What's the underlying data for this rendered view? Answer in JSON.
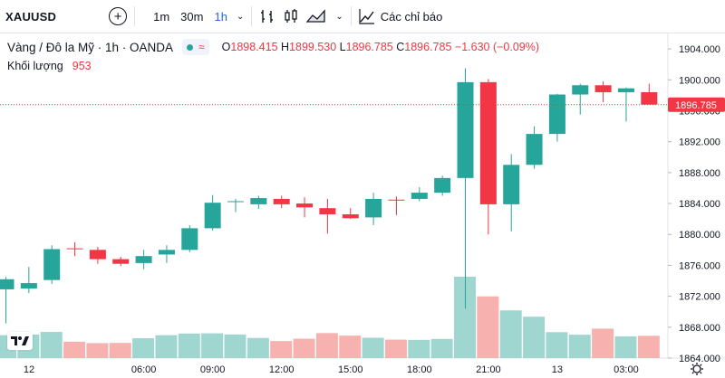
{
  "toolbar": {
    "symbol": "XAUUSD",
    "timeframes": [
      {
        "label": "1m",
        "active": false
      },
      {
        "label": "30m",
        "active": false
      },
      {
        "label": "1h",
        "active": true
      }
    ],
    "indicators_label": "Các chỉ báo"
  },
  "legend": {
    "title": "Vàng / Đô la Mỹ · 1h · OANDA",
    "o_label": "O",
    "o": "1898.415",
    "h_label": "H",
    "h": "1899.530",
    "l_label": "L",
    "l": "1896.785",
    "c_label": "C",
    "c": "1896.785",
    "change": "−1.630 (−0.09%)",
    "volume_label": "Khối lượng",
    "volume_value": "953"
  },
  "price_axis": {
    "ticks": [
      "1904.000",
      "1900.000",
      "1896.000",
      "1892.000",
      "1888.000",
      "1884.000",
      "1880.000",
      "1876.000",
      "1872.000",
      "1868.000",
      "1864.000"
    ],
    "current_price": "1896.785"
  },
  "time_axis": {
    "ticks": [
      "12",
      "06:00",
      "09:00",
      "12:00",
      "15:00",
      "18:00",
      "21:00",
      "13",
      "03:00"
    ]
  },
  "colors": {
    "up": "#26a69a",
    "down": "#f23645",
    "up_vol": "#9fd6d0",
    "down_vol": "#f7b2b0",
    "accent": "#2962ff"
  },
  "chart_data": {
    "type": "candlestick",
    "candles": [
      {
        "o": 1872.9,
        "h": 1874.5,
        "l": 1868.5,
        "c": 1874.2,
        "v": 980
      },
      {
        "o": 1873.0,
        "h": 1875.8,
        "l": 1872.4,
        "c": 1873.7,
        "v": 1010
      },
      {
        "o": 1874.1,
        "h": 1878.6,
        "l": 1873.6,
        "c": 1878.1,
        "v": 1120
      },
      {
        "o": 1878.2,
        "h": 1879.0,
        "l": 1877.2,
        "c": 1878.1,
        "v": 700
      },
      {
        "o": 1878.0,
        "h": 1878.4,
        "l": 1876.2,
        "c": 1876.8,
        "v": 640
      },
      {
        "o": 1876.8,
        "h": 1877.1,
        "l": 1875.9,
        "c": 1876.2,
        "v": 650
      },
      {
        "o": 1876.3,
        "h": 1878.0,
        "l": 1875.5,
        "c": 1877.2,
        "v": 850
      },
      {
        "o": 1877.4,
        "h": 1878.6,
        "l": 1876.3,
        "c": 1878.0,
        "v": 980
      },
      {
        "o": 1878.0,
        "h": 1881.2,
        "l": 1877.7,
        "c": 1880.8,
        "v": 1050
      },
      {
        "o": 1880.8,
        "h": 1885.1,
        "l": 1880.5,
        "c": 1884.1,
        "v": 1060
      },
      {
        "o": 1884.2,
        "h": 1884.6,
        "l": 1882.9,
        "c": 1884.3,
        "v": 1010
      },
      {
        "o": 1883.9,
        "h": 1885.0,
        "l": 1883.3,
        "c": 1884.7,
        "v": 860
      },
      {
        "o": 1884.6,
        "h": 1885.0,
        "l": 1883.4,
        "c": 1883.9,
        "v": 730
      },
      {
        "o": 1884.0,
        "h": 1884.8,
        "l": 1882.2,
        "c": 1883.5,
        "v": 830
      },
      {
        "o": 1883.4,
        "h": 1884.6,
        "l": 1880.1,
        "c": 1882.6,
        "v": 1070
      },
      {
        "o": 1882.6,
        "h": 1883.4,
        "l": 1882.0,
        "c": 1882.1,
        "v": 960
      },
      {
        "o": 1882.2,
        "h": 1885.4,
        "l": 1881.2,
        "c": 1884.6,
        "v": 870
      },
      {
        "o": 1884.5,
        "h": 1884.9,
        "l": 1882.5,
        "c": 1884.4,
        "v": 790
      },
      {
        "o": 1884.6,
        "h": 1886.1,
        "l": 1884.3,
        "c": 1885.4,
        "v": 780
      },
      {
        "o": 1885.4,
        "h": 1887.6,
        "l": 1885.0,
        "c": 1887.3,
        "v": 820
      },
      {
        "o": 1887.3,
        "h": 1901.5,
        "l": 1870.4,
        "c": 1899.7,
        "v": 3480
      },
      {
        "o": 1899.7,
        "h": 1900.1,
        "l": 1880.0,
        "c": 1883.9,
        "v": 2640
      },
      {
        "o": 1883.9,
        "h": 1890.4,
        "l": 1880.4,
        "c": 1889.0,
        "v": 2040
      },
      {
        "o": 1889.0,
        "h": 1894.0,
        "l": 1888.5,
        "c": 1893.0,
        "v": 1770
      },
      {
        "o": 1893.0,
        "h": 1898.2,
        "l": 1892.0,
        "c": 1898.1,
        "v": 1110
      },
      {
        "o": 1898.1,
        "h": 1899.5,
        "l": 1895.5,
        "c": 1899.3,
        "v": 1000
      },
      {
        "o": 1899.3,
        "h": 1899.8,
        "l": 1897.1,
        "c": 1898.4,
        "v": 1260
      },
      {
        "o": 1898.4,
        "h": 1899.0,
        "l": 1894.6,
        "c": 1898.9,
        "v": 930
      },
      {
        "o": 1898.4,
        "h": 1899.5,
        "l": 1896.8,
        "c": 1896.8,
        "v": 953
      }
    ],
    "ylim": [
      1864,
      1906
    ],
    "x_tick_labels": [
      "12",
      "06:00",
      "09:00",
      "12:00",
      "15:00",
      "18:00",
      "21:00",
      "13",
      "03:00"
    ]
  }
}
